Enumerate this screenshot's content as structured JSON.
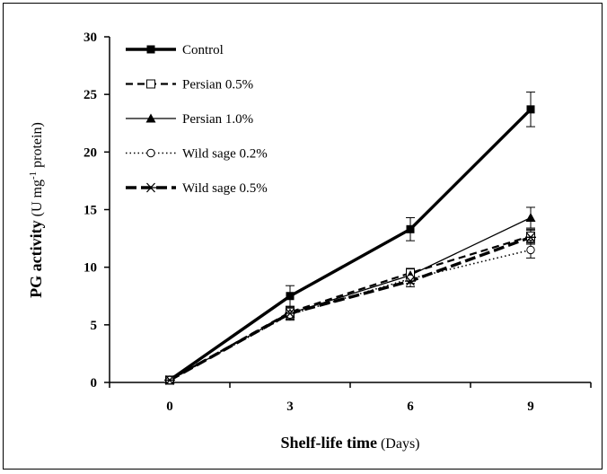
{
  "chart_data": {
    "type": "line",
    "xlabel_bold": "Shelf-life time",
    "xlabel_unit": " (Days)",
    "ylabel_bold": "PG activity",
    "ylabel_unit_pre": " (U mg",
    "ylabel_unit_sup": "-1",
    "ylabel_unit_post": " protein)",
    "x": [
      0,
      3,
      6,
      9
    ],
    "x_ticks": [
      "0",
      "3",
      "6",
      "9"
    ],
    "y_ticks": [
      "0",
      "5",
      "10",
      "15",
      "20",
      "25",
      "30"
    ],
    "ylim": [
      0,
      30
    ],
    "xlim": [
      -1.5,
      10.5
    ],
    "legend_position": "top-left",
    "grid": false,
    "series": [
      {
        "name": "Control",
        "values": [
          0.2,
          7.5,
          13.3,
          23.7
        ],
        "errors": [
          0,
          0.9,
          1.0,
          1.5
        ],
        "line": "solid-thick",
        "marker": "square-filled"
      },
      {
        "name": "Persian 0.5%",
        "values": [
          0.2,
          6.1,
          9.5,
          12.7
        ],
        "errors": [
          0,
          0.5,
          0.4,
          0.6
        ],
        "line": "dashed",
        "marker": "square-open"
      },
      {
        "name": "Persian 1.0%",
        "values": [
          0.2,
          6.0,
          9.3,
          14.3
        ],
        "errors": [
          0,
          0.5,
          0.5,
          0.9
        ],
        "line": "solid-thin",
        "marker": "triangle-filled"
      },
      {
        "name": "Wild sage 0.2%",
        "values": [
          0.2,
          5.9,
          9.0,
          11.5
        ],
        "errors": [
          0,
          0.4,
          0.4,
          0.7
        ],
        "line": "dotted",
        "marker": "circle-open"
      },
      {
        "name": "Wild sage 0.5%",
        "values": [
          0.2,
          6.0,
          8.8,
          12.6
        ],
        "errors": [
          0,
          0.6,
          0.5,
          0.6
        ],
        "line": "dash-thick",
        "marker": "star"
      }
    ]
  }
}
